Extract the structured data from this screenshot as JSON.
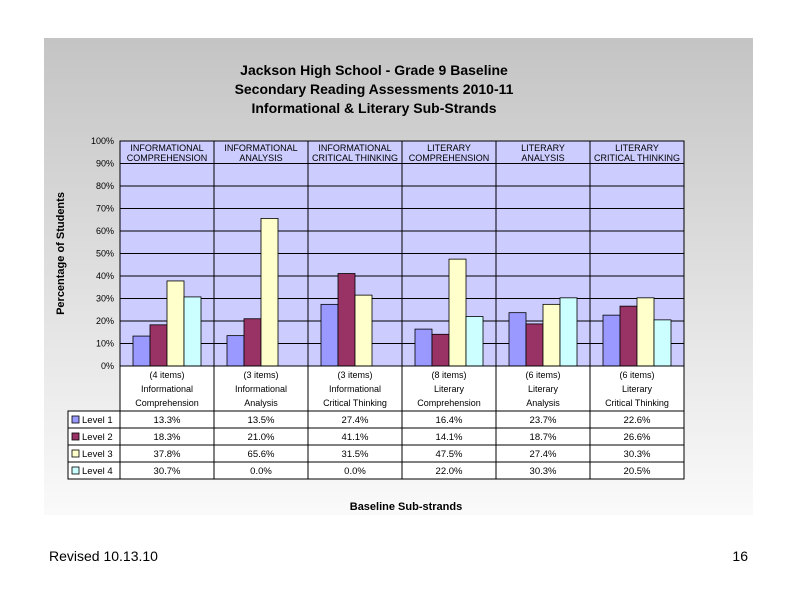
{
  "footer": {
    "revised": "Revised  10.13.10",
    "page_number": "16"
  },
  "chart_data": {
    "type": "bar",
    "title_lines": [
      "Jackson High School - Grade 9 Baseline",
      "Secondary Reading Assessments 2010-11",
      "Informational & Literary Sub-Strands"
    ],
    "ylabel": "Percentage of Students",
    "xlabel": "Baseline Sub-strands",
    "ylim": [
      0,
      100
    ],
    "yticks": [
      "0%",
      "10%",
      "20%",
      "30%",
      "40%",
      "50%",
      "60%",
      "70%",
      "80%",
      "90%",
      "100%"
    ],
    "grid": true,
    "categories": [
      [
        "(4 items)",
        "Informational",
        "Comprehension"
      ],
      [
        "(3 items)",
        "Informational",
        "Analysis"
      ],
      [
        "(3 items)",
        "Informational",
        "Critical Thinking"
      ],
      [
        "(8 items)",
        "Literary",
        "Comprehension"
      ],
      [
        "(6 items)",
        "Literary",
        "Analysis"
      ],
      [
        "(6 items)",
        "Literary",
        "Critical Thinking"
      ]
    ],
    "panel_labels": [
      [
        "INFORMATIONAL",
        "COMPREHENSION"
      ],
      [
        "INFORMATIONAL",
        "ANALYSIS"
      ],
      [
        "INFORMATIONAL",
        "CRITICAL THINKING"
      ],
      [
        "LITERARY",
        "COMPREHENSION"
      ],
      [
        "LITERARY",
        "ANALYSIS"
      ],
      [
        "LITERARY",
        "CRITICAL THINKING"
      ]
    ],
    "series": [
      {
        "name": "Level 1",
        "color": "#9999ff",
        "values": [
          13.3,
          13.5,
          27.4,
          16.4,
          23.7,
          22.6
        ],
        "labels": [
          "13.3%",
          "13.5%",
          "27.4%",
          "16.4%",
          "23.7%",
          "22.6%"
        ]
      },
      {
        "name": "Level 2",
        "color": "#993366",
        "values": [
          18.3,
          21.0,
          41.1,
          14.1,
          18.7,
          26.6
        ],
        "labels": [
          "18.3%",
          "21.0%",
          "41.1%",
          "14.1%",
          "18.7%",
          "26.6%"
        ]
      },
      {
        "name": "Level 3",
        "color": "#ffffcc",
        "values": [
          37.8,
          65.6,
          31.5,
          47.5,
          27.4,
          30.3
        ],
        "labels": [
          "37.8%",
          "65.6%",
          "31.5%",
          "47.5%",
          "27.4%",
          "30.3%"
        ]
      },
      {
        "name": "Level 4",
        "color": "#ccffff",
        "values": [
          30.7,
          0.0,
          0.0,
          22.0,
          30.3,
          20.5
        ],
        "labels": [
          "30.7%",
          "0.0%",
          "0.0%",
          "22.0%",
          "30.3%",
          "20.5%"
        ]
      }
    ],
    "plot_background": "#ccccff"
  }
}
